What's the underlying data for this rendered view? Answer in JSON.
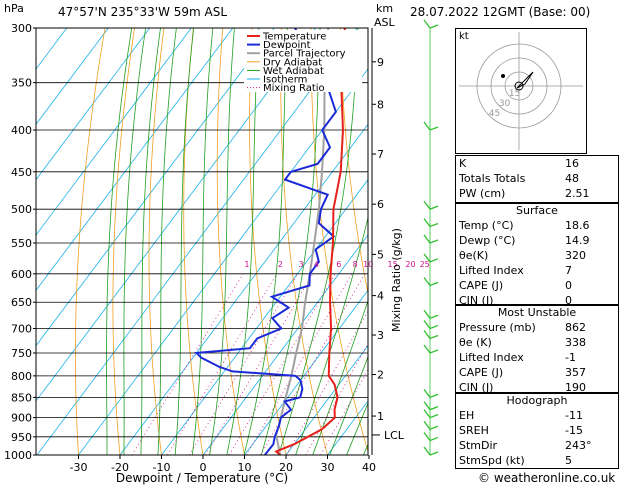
{
  "header": {
    "pressure_unit": "hPa",
    "location": "47°57'N  235°33'W  59m  ASL",
    "height_unit": "km",
    "height_unit2": "ASL",
    "datetime": "28.07.2022  12GMT  (Base: 00)"
  },
  "chart_data": {
    "type": "skew-t",
    "xlabel": "Dewpoint / Temperature (°C)",
    "ylabel_right": "Mixing Ratio (g/kg)",
    "pressure_levels": [
      300,
      350,
      400,
      450,
      500,
      550,
      600,
      650,
      700,
      750,
      800,
      850,
      900,
      950,
      1000
    ],
    "temp_ticks": [
      -30,
      -20,
      -10,
      0,
      10,
      20,
      30,
      40
    ],
    "height_km": [
      {
        "km": "9",
        "p": 330
      },
      {
        "km": "8",
        "p": 372
      },
      {
        "km": "7",
        "p": 428
      },
      {
        "km": "6",
        "p": 493
      },
      {
        "km": "5",
        "p": 568
      },
      {
        "km": "4",
        "p": 638
      },
      {
        "km": "3",
        "p": 713
      },
      {
        "km": "2",
        "p": 797
      },
      {
        "km": "1",
        "p": 896
      }
    ],
    "lcl_label": "LCL",
    "lcl_p": 945,
    "mixing_ratio_labels": [
      "1",
      "2",
      "3",
      "4",
      "6",
      "8",
      "10",
      "15",
      "20",
      "25"
    ],
    "mixing_ratio_p": 590,
    "legend": [
      "Temperature",
      "Dewpoint",
      "Parcel Trajectory",
      "Dry Adiabat",
      "Wet Adiabat",
      "Isotherm",
      "Mixing Ratio"
    ],
    "colors": {
      "temperature": "#e8201a",
      "dewpoint": "#1a2ad8",
      "parcel": "#a0a0a0",
      "dry_adiabat": "#f0a020",
      "wet_adiabat": "#20a020",
      "isotherm": "#1ab0e8",
      "mixing_ratio": "#d01090",
      "wind": "#30c030"
    },
    "temperature": [
      [
        1000,
        18.6
      ],
      [
        990,
        17
      ],
      [
        970,
        20
      ],
      [
        950,
        22
      ],
      [
        930,
        24
      ],
      [
        900,
        25
      ],
      [
        880,
        23.5
      ],
      [
        850,
        22
      ],
      [
        820,
        19
      ],
      [
        800,
        16
      ],
      [
        750,
        12
      ],
      [
        700,
        8
      ],
      [
        650,
        3
      ],
      [
        600,
        -2
      ],
      [
        550,
        -7
      ],
      [
        500,
        -13
      ],
      [
        450,
        -18
      ],
      [
        400,
        -25
      ],
      [
        350,
        -34
      ],
      [
        300,
        -43
      ]
    ],
    "dewpoint": [
      [
        1000,
        14.9
      ],
      [
        970,
        15
      ],
      [
        950,
        14
      ],
      [
        920,
        13
      ],
      [
        900,
        12
      ],
      [
        880,
        13
      ],
      [
        860,
        10
      ],
      [
        850,
        13
      ],
      [
        830,
        12
      ],
      [
        810,
        10
      ],
      [
        800,
        8
      ],
      [
        790,
        -8
      ],
      [
        780,
        -12
      ],
      [
        760,
        -18
      ],
      [
        750,
        -20
      ],
      [
        740,
        -8
      ],
      [
        720,
        -8
      ],
      [
        700,
        -4
      ],
      [
        680,
        -8
      ],
      [
        660,
        -6
      ],
      [
        640,
        -12
      ],
      [
        620,
        -5
      ],
      [
        600,
        -7
      ],
      [
        580,
        -7
      ],
      [
        560,
        -10
      ],
      [
        540,
        -8
      ],
      [
        520,
        -14
      ],
      [
        500,
        -16
      ],
      [
        480,
        -17
      ],
      [
        460,
        -30
      ],
      [
        450,
        -30
      ],
      [
        440,
        -25
      ],
      [
        420,
        -25
      ],
      [
        400,
        -30
      ],
      [
        380,
        -30
      ],
      [
        360,
        -35
      ],
      [
        340,
        -40
      ],
      [
        320,
        -48
      ],
      [
        300,
        -55
      ]
    ],
    "parcel": [
      [
        1000,
        18.6
      ],
      [
        945,
        14
      ],
      [
        900,
        12
      ],
      [
        850,
        9.5
      ],
      [
        800,
        7
      ],
      [
        750,
        4
      ],
      [
        700,
        1
      ],
      [
        650,
        -3
      ],
      [
        600,
        -7
      ],
      [
        550,
        -11.5
      ],
      [
        500,
        -16.5
      ],
      [
        450,
        -22.5
      ],
      [
        400,
        -29.5
      ],
      [
        350,
        -38
      ],
      [
        300,
        -47
      ]
    ]
  },
  "hodograph": {
    "label": "kt",
    "ring_labels": [
      "45",
      "30",
      "15"
    ]
  },
  "indices": [
    {
      "label": "K",
      "value": "16"
    },
    {
      "label": "Totals Totals",
      "value": "48"
    },
    {
      "label": "PW (cm)",
      "value": "2.51"
    }
  ],
  "surface": {
    "title": "Surface",
    "rows": [
      {
        "label": "Temp (°C)",
        "value": "18.6"
      },
      {
        "label": "Dewp (°C)",
        "value": "14.9"
      },
      {
        "label": "θe(K)",
        "value": "320"
      },
      {
        "label": "Lifted Index",
        "value": "7"
      },
      {
        "label": "CAPE (J)",
        "value": "0"
      },
      {
        "label": "CIN (J)",
        "value": "0"
      }
    ]
  },
  "unstable": {
    "title": "Most Unstable",
    "rows": [
      {
        "label": "Pressure (mb)",
        "value": "862"
      },
      {
        "label": "θe (K)",
        "value": "338"
      },
      {
        "label": "Lifted Index",
        "value": "-1"
      },
      {
        "label": "CAPE (J)",
        "value": "357"
      },
      {
        "label": "CIN (J)",
        "value": "190"
      }
    ]
  },
  "hodo_table": {
    "title": "Hodograph",
    "rows": [
      {
        "label": "EH",
        "value": "-11"
      },
      {
        "label": "SREH",
        "value": "-15"
      },
      {
        "label": "StmDir",
        "value": "243°"
      },
      {
        "label": "StmSpd (kt)",
        "value": "5"
      }
    ]
  },
  "footer": {
    "copyright": "© weatheronline.co.uk"
  }
}
